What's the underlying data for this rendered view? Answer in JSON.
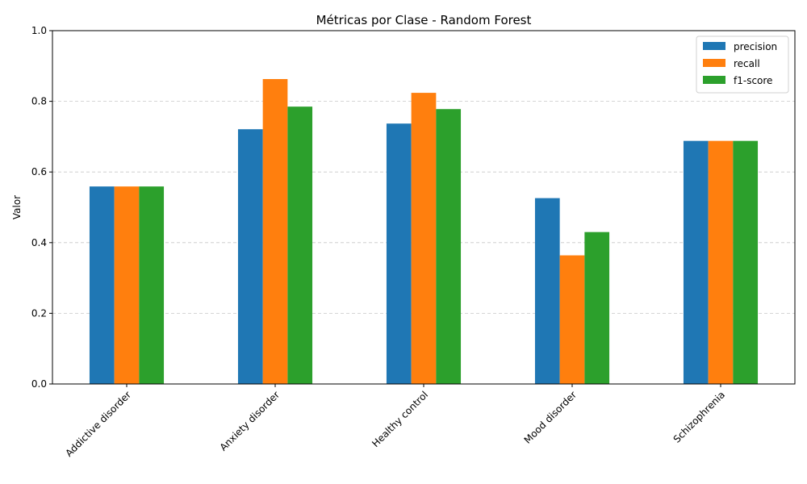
{
  "chart_data": {
    "type": "bar",
    "title": "Métricas por Clase - Random Forest",
    "xlabel": "",
    "ylabel": "Valor",
    "ylim": [
      0,
      1.0
    ],
    "yticks": [
      "0.0",
      "0.2",
      "0.4",
      "0.6",
      "0.8",
      "1.0"
    ],
    "ytick_values": [
      0.0,
      0.2,
      0.4,
      0.6,
      0.8,
      1.0
    ],
    "grid": "horizontal dashed",
    "legend_position": "top-right",
    "categories": [
      "Addictive disorder",
      "Anxiety disorder",
      "Healthy control",
      "Mood disorder",
      "Schizophrenia"
    ],
    "series": [
      {
        "name": "precision",
        "color": "#1f77b4",
        "values": [
          0.559,
          0.721,
          0.737,
          0.526,
          0.688
        ]
      },
      {
        "name": "recall",
        "color": "#ff7f0e",
        "values": [
          0.559,
          0.863,
          0.824,
          0.364,
          0.688
        ]
      },
      {
        "name": "f1-score",
        "color": "#2ca02c",
        "values": [
          0.559,
          0.785,
          0.778,
          0.43,
          0.688
        ]
      }
    ]
  }
}
